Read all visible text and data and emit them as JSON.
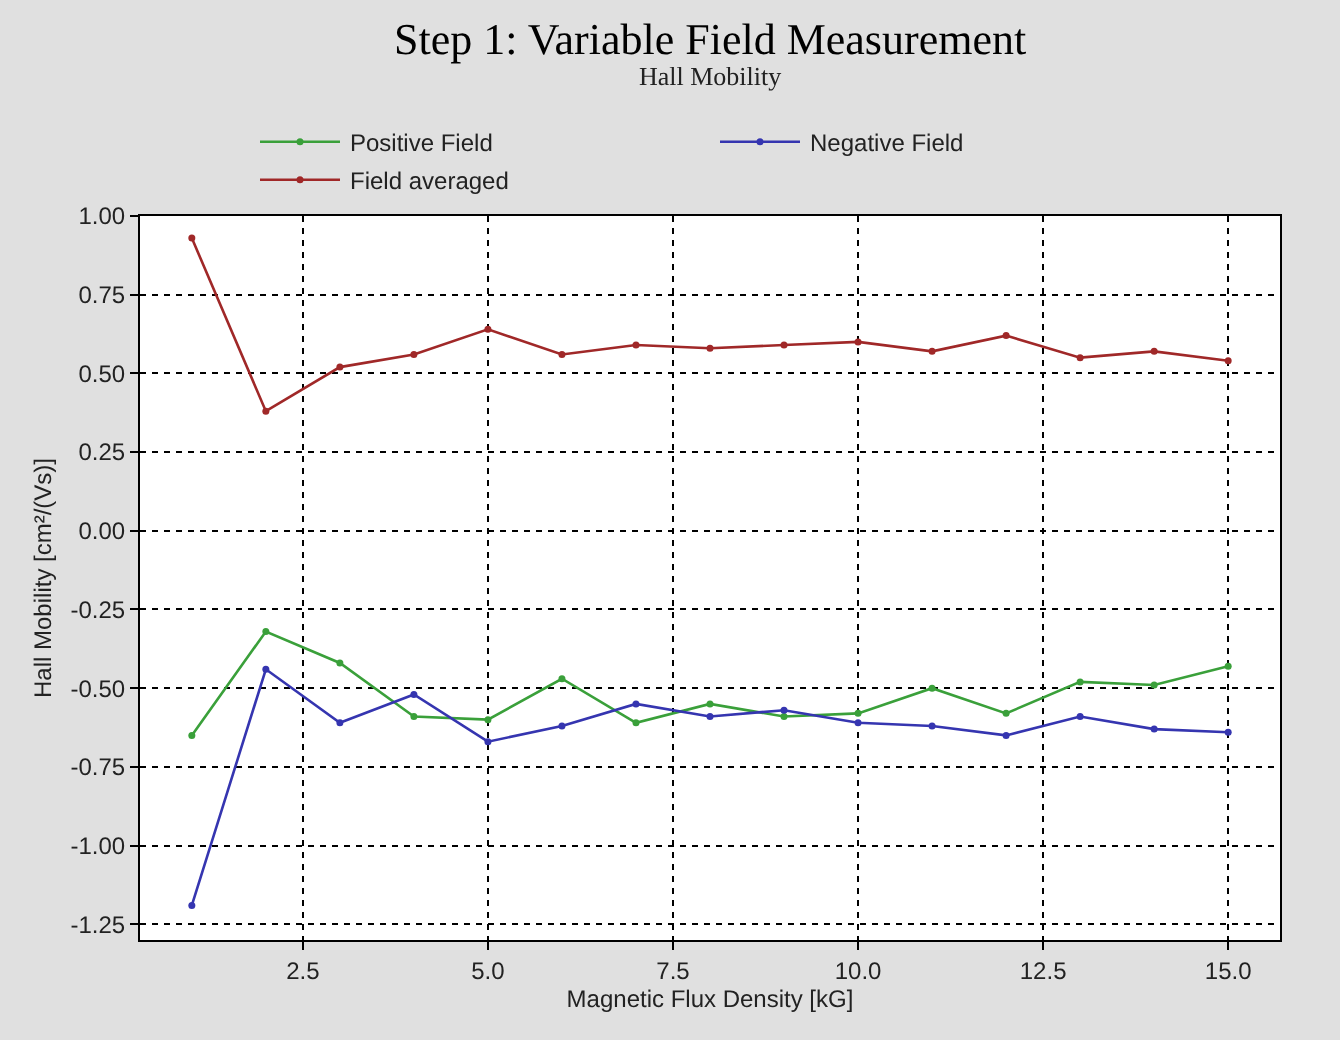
{
  "chart_data": {
    "type": "line",
    "title": "Step 1: Variable Field Measurement",
    "subtitle": "Hall Mobility",
    "xlabel": "Magnetic Flux Density [kG]",
    "ylabel": "Hall Mobility [cm²/(Vs)]",
    "x": [
      1,
      2,
      3,
      4,
      5,
      6,
      7,
      8,
      9,
      10,
      11,
      12,
      13,
      14,
      15
    ],
    "series": [
      {
        "name": "Positive Field",
        "color": "#3aa03a",
        "values": [
          -0.65,
          -0.32,
          -0.42,
          -0.59,
          -0.6,
          -0.47,
          -0.61,
          -0.55,
          -0.59,
          -0.58,
          -0.5,
          -0.58,
          -0.48,
          -0.49,
          -0.43
        ]
      },
      {
        "name": "Negative Field",
        "color": "#3535b0",
        "values": [
          -1.19,
          -0.44,
          -0.61,
          -0.52,
          -0.67,
          -0.62,
          -0.55,
          -0.59,
          -0.57,
          -0.61,
          -0.62,
          -0.65,
          -0.59,
          -0.63,
          -0.64
        ]
      },
      {
        "name": "Field averaged",
        "color": "#a02828",
        "values": [
          0.93,
          0.38,
          0.52,
          0.56,
          0.64,
          0.56,
          0.59,
          0.58,
          0.59,
          0.6,
          0.57,
          0.62,
          0.55,
          0.57,
          0.54
        ]
      }
    ],
    "xlim": [
      0.3,
      15.7
    ],
    "xticks": [
      {
        "value": 2.5,
        "label": "2.5"
      },
      {
        "value": 5,
        "label": "5.0"
      },
      {
        "value": 7.5,
        "label": "7.5"
      },
      {
        "value": 10,
        "label": "10.0"
      },
      {
        "value": 12.5,
        "label": "12.5"
      },
      {
        "value": 15,
        "label": "15.0"
      }
    ],
    "ylim": [
      -1.3,
      1.0
    ],
    "yticks": [
      {
        "value": -1.25,
        "label": "-1.25"
      },
      {
        "value": -1,
        "label": "-1.00"
      },
      {
        "value": -0.75,
        "label": "-0.75"
      },
      {
        "value": -0.5,
        "label": "-0.50"
      },
      {
        "value": -0.25,
        "label": "-0.25"
      },
      {
        "value": 0,
        "label": "0.00"
      },
      {
        "value": 0.25,
        "label": "0.25"
      },
      {
        "value": 0.5,
        "label": "0.50"
      },
      {
        "value": 0.75,
        "label": "0.75"
      },
      {
        "value": 1,
        "label": "1.00"
      }
    ],
    "grid": true,
    "legend": "top",
    "marker": "circle",
    "line_style": "solid"
  }
}
